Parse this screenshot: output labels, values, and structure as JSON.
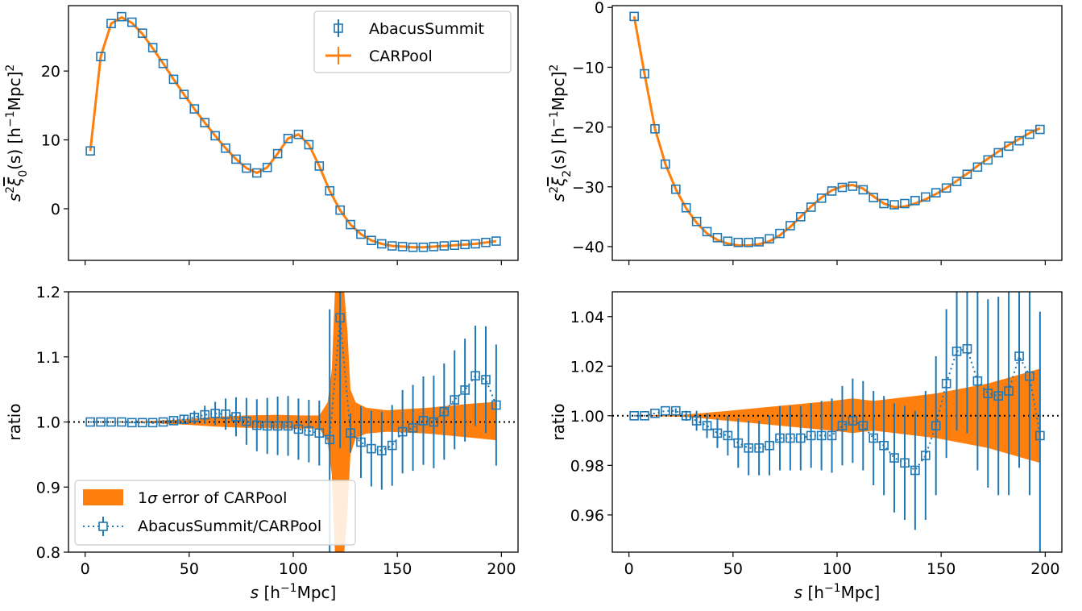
{
  "colors": {
    "abacus": "#1f77b4",
    "carpool": "#ff7f0e",
    "axes": "#000000"
  },
  "chart_data": [
    {
      "type": "line",
      "panel": "top-left",
      "xlim": [
        -8,
        208
      ],
      "ylim": [
        -7.5,
        29.5
      ],
      "yticks": [
        0,
        10,
        20
      ],
      "xticks": [
        0,
        50,
        100,
        150,
        200
      ],
      "show_xtick_labels": false,
      "ylabel": {
        "pre": "s",
        "sup": "2",
        "xi": "ξ",
        "sub": "0",
        "post": "(s) [h",
        "sup2": "−1",
        "post2": "Mpc]",
        "sup3": "2"
      },
      "legend": {
        "placement": "top-right",
        "entries": [
          {
            "label": "AbacusSummit",
            "kind": "square-errorbar",
            "series": "abacus"
          },
          {
            "label": "CARPool",
            "kind": "line-errorbar",
            "series": "carpool"
          }
        ]
      },
      "series": [
        {
          "name": "AbacusSummit",
          "style": "markers",
          "x": [
            2.5,
            7.5,
            12.5,
            17.5,
            22.5,
            27.5,
            32.5,
            37.5,
            42.5,
            47.5,
            52.5,
            57.5,
            62.5,
            67.5,
            72.5,
            77.5,
            82.5,
            87.5,
            92.5,
            97.5,
            102.5,
            107.5,
            112.5,
            117.5,
            122.5,
            127.5,
            132.5,
            137.5,
            142.5,
            147.5,
            152.5,
            157.5,
            162.5,
            167.5,
            172.5,
            177.5,
            182.5,
            187.5,
            192.5,
            197.5
          ],
          "y": [
            8.4,
            22.1,
            26.9,
            27.9,
            27.1,
            25.5,
            23.4,
            21.1,
            18.8,
            16.6,
            14.5,
            12.5,
            10.6,
            8.8,
            7.2,
            5.9,
            5.2,
            6.0,
            8.0,
            10.2,
            10.8,
            9.3,
            6.2,
            2.6,
            -0.2,
            -2.3,
            -3.7,
            -4.6,
            -5.1,
            -5.4,
            -5.5,
            -5.6,
            -5.6,
            -5.5,
            -5.4,
            -5.3,
            -5.2,
            -5.1,
            -4.9,
            -4.7
          ]
        },
        {
          "name": "CARPool",
          "style": "line",
          "x": [
            2.5,
            7.5,
            12.5,
            17.5,
            22.5,
            27.5,
            32.5,
            37.5,
            42.5,
            47.5,
            52.5,
            57.5,
            62.5,
            67.5,
            72.5,
            77.5,
            82.5,
            87.5,
            92.5,
            97.5,
            102.5,
            107.5,
            112.5,
            117.5,
            122.5,
            127.5,
            132.5,
            137.5,
            142.5,
            147.5,
            152.5,
            157.5,
            162.5,
            167.5,
            172.5,
            177.5,
            182.5,
            187.5,
            192.5,
            197.5
          ],
          "y": [
            8.4,
            22.1,
            26.9,
            27.8,
            27.0,
            25.4,
            23.3,
            21.1,
            18.8,
            16.6,
            14.5,
            12.5,
            10.6,
            8.8,
            7.2,
            5.9,
            5.2,
            6.0,
            8.0,
            10.2,
            10.8,
            9.3,
            6.2,
            2.6,
            -0.2,
            -2.3,
            -3.7,
            -4.6,
            -5.1,
            -5.4,
            -5.5,
            -5.6,
            -5.6,
            -5.5,
            -5.4,
            -5.3,
            -5.2,
            -5.1,
            -4.9,
            -4.7
          ]
        }
      ]
    },
    {
      "type": "line",
      "panel": "top-right",
      "xlim": [
        -8,
        208
      ],
      "ylim": [
        -42.3,
        0.3
      ],
      "yticks": [
        -40,
        -30,
        -20,
        -10,
        0
      ],
      "xticks": [
        0,
        50,
        100,
        150,
        200
      ],
      "show_xtick_labels": false,
      "ylabel": {
        "pre": "s",
        "sup": "2",
        "xi": "ξ",
        "sub": "2",
        "post": "(s) [h",
        "sup2": "−1",
        "post2": "Mpc]",
        "sup3": "2"
      },
      "series": [
        {
          "name": "AbacusSummit",
          "style": "markers",
          "x": [
            2.5,
            7.5,
            12.5,
            17.5,
            22.5,
            27.5,
            32.5,
            37.5,
            42.5,
            47.5,
            52.5,
            57.5,
            62.5,
            67.5,
            72.5,
            77.5,
            82.5,
            87.5,
            92.5,
            97.5,
            102.5,
            107.5,
            112.5,
            117.5,
            122.5,
            127.5,
            132.5,
            137.5,
            142.5,
            147.5,
            152.5,
            157.5,
            162.5,
            167.5,
            172.5,
            177.5,
            182.5,
            187.5,
            192.5,
            197.5
          ],
          "y": [
            -1.5,
            -11.1,
            -20.3,
            -26.2,
            -30.4,
            -33.5,
            -35.8,
            -37.5,
            -38.5,
            -39.1,
            -39.3,
            -39.3,
            -39.2,
            -38.7,
            -37.8,
            -36.5,
            -35.0,
            -33.4,
            -31.9,
            -30.7,
            -30.1,
            -29.9,
            -30.5,
            -31.8,
            -32.8,
            -33.0,
            -32.8,
            -32.3,
            -31.7,
            -31.0,
            -30.2,
            -29.1,
            -27.9,
            -26.7,
            -25.5,
            -24.3,
            -23.2,
            -22.3,
            -21.2,
            -20.4
          ]
        },
        {
          "name": "CARPool",
          "style": "line",
          "x": [
            2.5,
            7.5,
            12.5,
            17.5,
            22.5,
            27.5,
            32.5,
            37.5,
            42.5,
            47.5,
            52.5,
            57.5,
            62.5,
            67.5,
            72.5,
            77.5,
            82.5,
            87.5,
            92.5,
            97.5,
            102.5,
            107.5,
            112.5,
            117.5,
            122.5,
            127.5,
            132.5,
            137.5,
            142.5,
            147.5,
            152.5,
            157.5,
            162.5,
            167.5,
            172.5,
            177.5,
            182.5,
            187.5,
            192.5,
            197.5
          ],
          "y": [
            -1.5,
            -11.1,
            -20.3,
            -26.2,
            -30.4,
            -33.6,
            -36.0,
            -37.8,
            -38.9,
            -39.5,
            -39.8,
            -39.8,
            -39.6,
            -39.1,
            -38.1,
            -36.7,
            -35.0,
            -33.3,
            -31.8,
            -30.6,
            -29.9,
            -29.7,
            -30.3,
            -31.6,
            -32.8,
            -33.4,
            -33.3,
            -32.8,
            -32.1,
            -31.2,
            -30.2,
            -29.0,
            -27.8,
            -26.5,
            -25.3,
            -24.1,
            -23.0,
            -22.0,
            -21.0,
            -20.2
          ]
        }
      ]
    },
    {
      "type": "line",
      "panel": "bottom-left",
      "xlim": [
        -8,
        208
      ],
      "ylim": [
        0.8,
        1.2
      ],
      "yticks": [
        0.8,
        0.9,
        1.0,
        1.1,
        1.2
      ],
      "ytick_labels": [
        "0.8",
        "0.9",
        "1.0",
        "1.1",
        "1.2"
      ],
      "xticks": [
        0,
        50,
        100,
        150,
        200
      ],
      "show_xtick_labels": true,
      "reference_line": 1.0,
      "xlabel": {
        "pre": "s",
        "post": " [h",
        "sup": "−1",
        "post2": "Mpc]"
      },
      "ylabel": "ratio",
      "legend": {
        "placement": "lower-left",
        "entries": [
          {
            "label_pre": "1",
            "label_sigma": "σ",
            "label_post": " error of CARPool",
            "kind": "band",
            "series": "carpool"
          },
          {
            "label": "AbacusSummit/CARPool",
            "kind": "dotted-square-errorbar",
            "series": "abacus"
          }
        ]
      },
      "series": [
        {
          "name": "AbacusSummit/CARPool",
          "style": "markers-dotted",
          "x": [
            2.5,
            7.5,
            12.5,
            17.5,
            22.5,
            27.5,
            32.5,
            37.5,
            42.5,
            47.5,
            52.5,
            57.5,
            62.5,
            67.5,
            72.5,
            77.5,
            82.5,
            87.5,
            92.5,
            97.5,
            102.5,
            107.5,
            112.5,
            117.5,
            122.5,
            127.5,
            132.5,
            137.5,
            142.5,
            147.5,
            152.5,
            157.5,
            162.5,
            167.5,
            172.5,
            177.5,
            182.5,
            187.5,
            192.5,
            197.5
          ],
          "y": [
            1.0,
            1.0,
            1.0,
            1.0,
            0.999,
            0.999,
            0.999,
            1.0,
            1.002,
            1.004,
            1.007,
            1.011,
            1.013,
            1.012,
            1.008,
            1.001,
            0.995,
            0.994,
            0.994,
            0.994,
            0.989,
            0.986,
            0.983,
            0.973,
            1.16,
            0.983,
            0.969,
            0.959,
            0.956,
            0.964,
            0.985,
            0.991,
            1.002,
            1.0,
            1.016,
            1.034,
            1.049,
            1.071,
            1.065,
            1.026
          ],
          "err": [
            0.0,
            0.0,
            0.0,
            0.0,
            0.001,
            0.001,
            0.002,
            0.003,
            0.004,
            0.007,
            0.01,
            0.014,
            0.018,
            0.024,
            0.03,
            0.036,
            0.04,
            0.043,
            0.045,
            0.046,
            0.047,
            0.048,
            0.05,
            0.2,
            0.2,
            0.03,
            0.055,
            0.058,
            0.06,
            0.062,
            0.064,
            0.066,
            0.068,
            0.071,
            0.074,
            0.076,
            0.079,
            0.077,
            0.082,
            0.093
          ]
        },
        {
          "name": "1σ error of CARPool",
          "style": "band",
          "x": [
            2.5,
            27.5,
            47.5,
            62.5,
            77.5,
            92.5,
            102.5,
            112.5,
            116.5,
            118.5,
            120.0,
            121.5,
            123.0,
            124.5,
            126.0,
            127.5,
            130.0,
            135.0,
            145.0,
            165.0,
            185.0,
            197.5
          ],
          "upper": [
            1.0,
            1.001,
            1.004,
            1.008,
            1.01,
            1.011,
            1.01,
            1.01,
            1.03,
            1.08,
            1.2,
            1.2,
            1.2,
            1.2,
            1.14,
            1.05,
            1.03,
            1.022,
            1.018,
            1.022,
            1.028,
            1.031
          ],
          "lower": [
            1.0,
            0.999,
            0.996,
            0.993,
            0.991,
            0.99,
            0.99,
            0.99,
            0.97,
            0.92,
            0.8,
            0.8,
            0.8,
            0.8,
            0.86,
            0.95,
            0.975,
            0.982,
            0.985,
            0.982,
            0.976,
            0.972
          ]
        }
      ]
    },
    {
      "type": "line",
      "panel": "bottom-right",
      "xlim": [
        -8,
        208
      ],
      "ylim": [
        0.945,
        1.05
      ],
      "yticks": [
        0.96,
        0.98,
        1.0,
        1.02,
        1.04
      ],
      "ytick_labels": [
        "0.96",
        "0.98",
        "1.00",
        "1.02",
        "1.04"
      ],
      "xticks": [
        0,
        50,
        100,
        150,
        200
      ],
      "show_xtick_labels": true,
      "reference_line": 1.0,
      "xlabel": {
        "pre": "s",
        "post": " [h",
        "sup": "−1",
        "post2": "Mpc]"
      },
      "ylabel": "ratio",
      "series": [
        {
          "name": "AbacusSummit/CARPool",
          "style": "markers-dotted",
          "x": [
            2.5,
            7.5,
            12.5,
            17.5,
            22.5,
            27.5,
            32.5,
            37.5,
            42.5,
            47.5,
            52.5,
            57.5,
            62.5,
            67.5,
            72.5,
            77.5,
            82.5,
            87.5,
            92.5,
            97.5,
            102.5,
            107.5,
            112.5,
            117.5,
            122.5,
            127.5,
            132.5,
            137.5,
            142.5,
            147.5,
            152.5,
            157.5,
            162.5,
            167.5,
            172.5,
            177.5,
            182.5,
            187.5,
            192.5,
            197.5
          ],
          "y": [
            1.0,
            1.0,
            1.001,
            1.002,
            1.002,
            1.0,
            0.998,
            0.996,
            0.993,
            0.992,
            0.989,
            0.987,
            0.987,
            0.988,
            0.991,
            0.991,
            0.991,
            0.992,
            0.992,
            0.992,
            0.996,
            0.998,
            0.996,
            0.991,
            0.988,
            0.983,
            0.981,
            0.978,
            0.984,
            0.996,
            1.013,
            1.026,
            1.027,
            1.014,
            1.009,
            1.008,
            1.01,
            1.024,
            1.016,
            0.992
          ],
          "err": [
            0.0,
            0.0,
            0.0,
            0.0,
            0.001,
            0.002,
            0.004,
            0.005,
            0.006,
            0.008,
            0.01,
            0.011,
            0.011,
            0.012,
            0.013,
            0.013,
            0.013,
            0.013,
            0.014,
            0.015,
            0.016,
            0.017,
            0.018,
            0.019,
            0.02,
            0.022,
            0.023,
            0.024,
            0.026,
            0.028,
            0.03,
            0.032,
            0.034,
            0.036,
            0.038,
            0.04,
            0.042,
            0.045,
            0.048,
            0.05
          ]
        },
        {
          "name": "1σ error of CARPool",
          "style": "band",
          "x": [
            2.5,
            27.5,
            47.5,
            72.5,
            97.5,
            107.5,
            117.5,
            127.5,
            147.5,
            172.5,
            197.5
          ],
          "upper": [
            1.0,
            1.0005,
            1.002,
            1.004,
            1.006,
            1.007,
            1.006,
            1.007,
            1.009,
            1.013,
            1.019
          ],
          "lower": [
            1.0,
            0.9995,
            0.998,
            0.996,
            0.994,
            0.993,
            0.994,
            0.993,
            0.991,
            0.987,
            0.981
          ]
        }
      ]
    }
  ]
}
